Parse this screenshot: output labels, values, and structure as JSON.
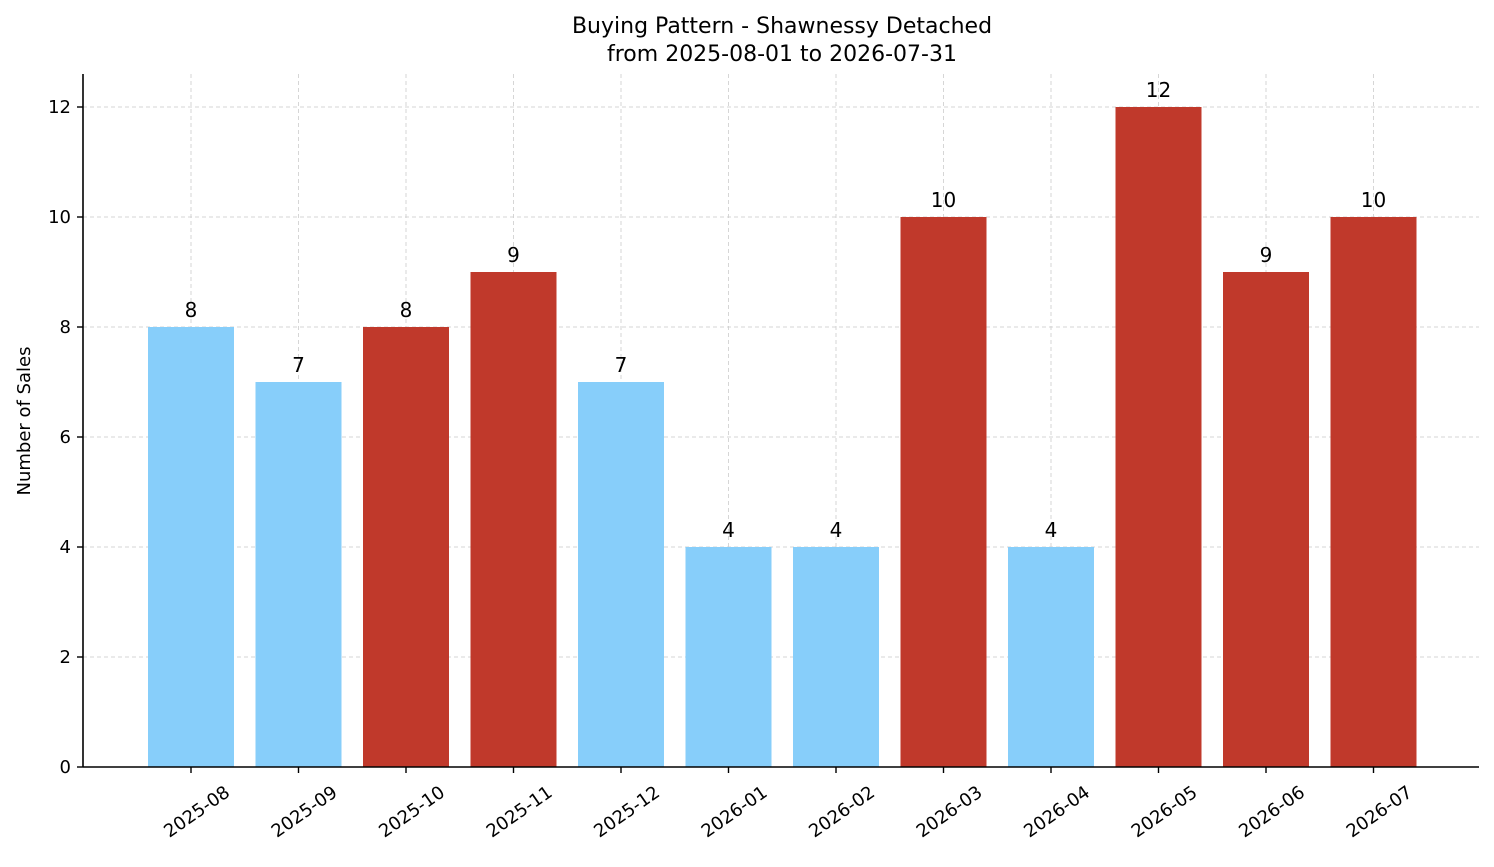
{
  "chart_data": {
    "type": "bar",
    "title": "Buying Pattern - Shawnessy Detached",
    "subtitle": "from 2025-08-01 to 2026-07-31",
    "xlabel": "",
    "ylabel": "Number of Sales",
    "categories": [
      "2025-08",
      "2025-09",
      "2025-10",
      "2025-11",
      "2025-12",
      "2026-01",
      "2026-02",
      "2026-03",
      "2026-04",
      "2026-05",
      "2026-06",
      "2026-07"
    ],
    "values": [
      8,
      7,
      8,
      9,
      7,
      4,
      4,
      10,
      4,
      12,
      9,
      10
    ],
    "bar_colors": [
      "#87cefa",
      "#87cefa",
      "#c0392b",
      "#c0392b",
      "#87cefa",
      "#87cefa",
      "#87cefa",
      "#c0392b",
      "#87cefa",
      "#c0392b",
      "#c0392b",
      "#c0392b"
    ],
    "ylim": [
      0,
      12.6
    ],
    "yticks": [
      0,
      2,
      4,
      6,
      8,
      10,
      12
    ],
    "grid": true,
    "data_labels": true
  }
}
